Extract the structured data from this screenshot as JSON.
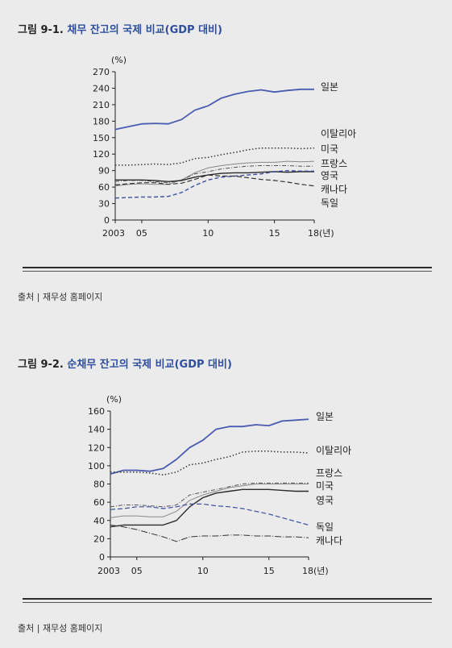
{
  "figure1": {
    "title_num": "그림 9-1.",
    "title_text": "채무 잔고의 국제 비교(GDP 대비)",
    "source": "출처 | 재무성 홈페이지"
  },
  "figure2": {
    "title_num": "그림 9-2.",
    "title_text": "순채무 잔고의 국제 비교(GDP 대비)",
    "source": "출처 | 재무성 홈페이지"
  },
  "chart_data": [
    {
      "type": "line",
      "title": "채무 잔고의 국제 비교(GDP 대비)",
      "unit": "(%)",
      "x_ticks": [
        "2003",
        "05",
        "10",
        "15",
        "18(년)"
      ],
      "x_tick_values": [
        2003,
        2005,
        2010,
        2015,
        2018
      ],
      "xlim": [
        2003,
        2018
      ],
      "ylim": [
        0,
        270
      ],
      "y_ticks": [
        0,
        30,
        60,
        90,
        120,
        150,
        180,
        210,
        240,
        270
      ],
      "x": [
        2003,
        2004,
        2005,
        2006,
        2007,
        2008,
        2009,
        2010,
        2011,
        2012,
        2013,
        2014,
        2015,
        2016,
        2017,
        2018
      ],
      "series": [
        {
          "name": "일본",
          "color": "#4a5bb0",
          "dash": "",
          "width": 1.8,
          "values": [
            165,
            170,
            175,
            176,
            175,
            183,
            200,
            208,
            222,
            229,
            234,
            237,
            233,
            236,
            238,
            238
          ]
        },
        {
          "name": "이탈리아",
          "color": "#333333",
          "dash": "1.5,2.5",
          "width": 1.5,
          "values": [
            100,
            100,
            101,
            102,
            101,
            104,
            112,
            114,
            119,
            123,
            128,
            131,
            131,
            131,
            130,
            131
          ]
        },
        {
          "name": "미국",
          "color": "#888888",
          "dash": "",
          "width": 1.0,
          "values": [
            62,
            65,
            66,
            65,
            65,
            73,
            86,
            95,
            99,
            102,
            104,
            105,
            105,
            107,
            106,
            107
          ]
        },
        {
          "name": "프랑스",
          "color": "#555555",
          "dash": "5,2,1,2",
          "width": 1.0,
          "values": [
            70,
            72,
            72,
            70,
            68,
            73,
            84,
            88,
            93,
            96,
            98,
            99,
            99,
            99,
            98,
            98
          ]
        },
        {
          "name": "영국",
          "color": "#2b2b2b",
          "dash": "",
          "width": 1.4,
          "values": [
            73,
            73,
            73,
            72,
            70,
            72,
            78,
            82,
            85,
            86,
            86,
            87,
            88,
            87,
            88,
            88
          ]
        },
        {
          "name": "캐나다",
          "color": "#3b4fa0",
          "dash": "5,3",
          "width": 1.4,
          "values": [
            40,
            41,
            42,
            42,
            43,
            50,
            63,
            73,
            78,
            80,
            82,
            84,
            88,
            90,
            89,
            89
          ]
        },
        {
          "name": "독일",
          "color": "#333333",
          "dash": "6,3",
          "width": 1.2,
          "values": [
            64,
            66,
            68,
            68,
            65,
            67,
            74,
            82,
            80,
            80,
            77,
            74,
            72,
            69,
            65,
            62
          ]
        }
      ]
    },
    {
      "type": "line",
      "title": "순채무 잔고의 국제 비교(GDP 대비)",
      "unit": "(%)",
      "x_ticks": [
        "2003",
        "05",
        "10",
        "15",
        "18(년)"
      ],
      "x_tick_values": [
        2003,
        2005,
        2010,
        2015,
        2018
      ],
      "xlim": [
        2003,
        2018
      ],
      "ylim": [
        0,
        160
      ],
      "y_ticks": [
        0,
        20,
        40,
        60,
        80,
        100,
        120,
        140,
        160
      ],
      "x": [
        2003,
        2004,
        2005,
        2006,
        2007,
        2008,
        2009,
        2010,
        2011,
        2012,
        2013,
        2014,
        2015,
        2016,
        2017,
        2018
      ],
      "series": [
        {
          "name": "일본",
          "color": "#4a5bb0",
          "dash": "",
          "width": 1.8,
          "values": [
            91,
            95,
            95,
            94,
            97,
            107,
            120,
            128,
            140,
            143,
            143,
            145,
            144,
            149,
            150,
            151
          ]
        },
        {
          "name": "이탈리아",
          "color": "#333333",
          "dash": "1.5,2.5",
          "width": 1.5,
          "values": [
            93,
            93,
            93,
            92,
            90,
            93,
            101,
            103,
            107,
            110,
            115,
            116,
            116,
            115,
            115,
            114
          ]
        },
        {
          "name": "프랑스",
          "color": "#555555",
          "dash": "5,2,1,2",
          "width": 1.0,
          "values": [
            55,
            57,
            57,
            56,
            55,
            57,
            68,
            71,
            74,
            77,
            80,
            81,
            81,
            81,
            81,
            81
          ]
        },
        {
          "name": "미국",
          "color": "#888888",
          "dash": "",
          "width": 1.0,
          "values": [
            43,
            45,
            45,
            44,
            44,
            50,
            62,
            68,
            72,
            76,
            78,
            80,
            80,
            80,
            80,
            80
          ]
        },
        {
          "name": "영국",
          "color": "#2b2b2b",
          "dash": "",
          "width": 1.4,
          "values": [
            33,
            35,
            35,
            35,
            35,
            40,
            55,
            65,
            70,
            72,
            74,
            74,
            74,
            73,
            72,
            72
          ]
        },
        {
          "name": "독일",
          "color": "#3b4fa0",
          "dash": "6,3",
          "width": 1.2,
          "values": [
            52,
            53,
            55,
            55,
            53,
            55,
            58,
            58,
            56,
            55,
            53,
            50,
            47,
            43,
            39,
            35
          ]
        },
        {
          "name": "캐나다",
          "color": "#333333",
          "dash": "8,2,1,2",
          "width": 1.0,
          "values": [
            35,
            33,
            30,
            26,
            22,
            17,
            22,
            23,
            23,
            24,
            24,
            23,
            23,
            22,
            22,
            21
          ]
        }
      ]
    }
  ]
}
